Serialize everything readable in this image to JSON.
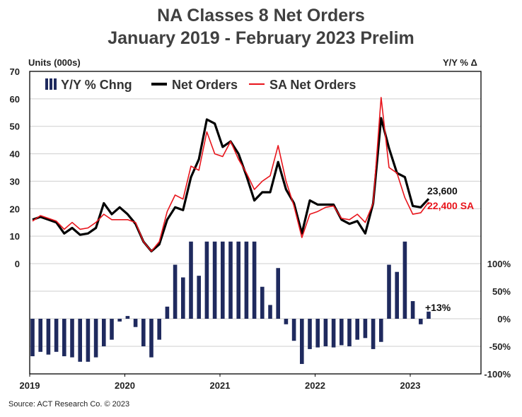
{
  "title_line1": "NA Classes 8 Net Orders",
  "title_line2": "January 2019 - February 2023 Prelim",
  "left_axis_label": "Units (000s)",
  "right_axis_label": "Y/Y % Δ",
  "source": "Source: ACT Research Co. © 2023",
  "colors": {
    "bars": "#1f2a5e",
    "net_orders": "#000000",
    "sa_net_orders": "#e8141b"
  },
  "chart_data": {
    "type": "combo",
    "legend_position": "top-left",
    "grid": true,
    "x_tick_labels": [
      "2019",
      "2020",
      "2021",
      "2022",
      "2023"
    ],
    "left_y_ticks": [
      "0",
      "10",
      "20",
      "30",
      "40",
      "50",
      "60",
      "70"
    ],
    "left_ylim": [
      0,
      70
    ],
    "right_y_ticks": [
      "-100%",
      "-50%",
      "0%",
      "50%",
      "100%"
    ],
    "right_ylim": [
      -100,
      100
    ],
    "series": [
      {
        "name": "Y/Y % Chng",
        "kind": "bar",
        "axis": "right",
        "values": [
          -68,
          -60,
          -65,
          -60,
          -68,
          -70,
          -78,
          -78,
          -70,
          -50,
          -38,
          -5,
          5,
          -15,
          -50,
          -70,
          -38,
          22,
          98,
          75,
          140,
          78,
          140,
          140,
          140,
          140,
          140,
          140,
          140,
          58,
          25,
          92,
          -10,
          -40,
          -82,
          -55,
          -52,
          -50,
          -52,
          -48,
          -50,
          -38,
          -35,
          -55,
          -42,
          98,
          85,
          140,
          32,
          -10,
          13
        ]
      },
      {
        "name": "Net Orders",
        "kind": "line",
        "axis": "left",
        "values": [
          16,
          17,
          16,
          15,
          11,
          13,
          10.5,
          11,
          13,
          22,
          18,
          20.5,
          18,
          14.5,
          8,
          4.5,
          7,
          16,
          20.5,
          19.5,
          31.5,
          38,
          52.5,
          51,
          42.5,
          44.5,
          40,
          32,
          23,
          26,
          26,
          37,
          27,
          22,
          11,
          23,
          21.5,
          21.5,
          21.5,
          16,
          14.5,
          15.5,
          11,
          22,
          53,
          42,
          33,
          31.5,
          21,
          20.5,
          23.6
        ]
      },
      {
        "name": "SA Net Orders",
        "kind": "line",
        "axis": "left",
        "values": [
          15.5,
          17.5,
          16.5,
          15.5,
          12.5,
          15,
          12.5,
          13,
          15,
          18,
          16,
          16,
          16,
          15,
          8,
          4.5,
          8,
          19,
          25,
          23.5,
          35.5,
          34,
          48,
          40,
          39,
          44.5,
          38,
          33,
          27,
          30,
          32,
          43,
          30,
          21,
          9.5,
          18,
          19,
          20.5,
          21,
          16.5,
          16,
          18,
          15,
          22,
          60.5,
          35,
          33,
          24,
          18,
          18.5,
          22.4
        ]
      }
    ],
    "annotations": {
      "net_orders_last": "23,600",
      "sa_net_orders_last": "22,400 SA",
      "yoy_last": "+13%"
    }
  }
}
